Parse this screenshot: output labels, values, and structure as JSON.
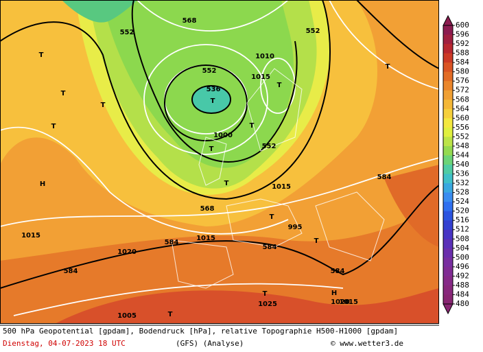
{
  "colorbar": {
    "ticks": [
      600,
      596,
      592,
      588,
      584,
      580,
      576,
      572,
      568,
      564,
      560,
      556,
      552,
      548,
      544,
      540,
      536,
      532,
      528,
      524,
      520,
      516,
      512,
      508,
      504,
      500,
      496,
      492,
      488,
      484,
      480
    ],
    "colors": [
      "#8c1c50",
      "#a02040",
      "#b82830",
      "#cc3a26",
      "#da5424",
      "#e26c26",
      "#ea862c",
      "#f0a034",
      "#f4b838",
      "#f6d03c",
      "#f4e840",
      "#e0f040",
      "#bce448",
      "#94da50",
      "#6cd478",
      "#50cca4",
      "#40c0c8",
      "#3aa8e0",
      "#3a8cf0",
      "#3070f0",
      "#2c54e0",
      "#3440d0",
      "#4834c4",
      "#5a30b8",
      "#6a2eac",
      "#782ea0",
      "#802c94",
      "#862a88",
      "#88287c",
      "#882672"
    ]
  },
  "map_labels": [
    "552",
    "552",
    "552",
    "552",
    "536",
    "568",
    "568",
    "584",
    "584",
    "584",
    "584",
    "584",
    "H",
    "H",
    "T",
    "T",
    "T",
    "T",
    "T",
    "T",
    "T",
    "T",
    "T",
    "T",
    "T",
    "T",
    "T",
    "T",
    "1015",
    "1020",
    "1025",
    "1015",
    "1010",
    "1015",
    "1000",
    "995",
    "1005",
    "1015",
    "1020",
    "1015"
  ],
  "footer": {
    "description": "500 hPa Geopotential [gpdam], Bodendruck [hPa], relative Topographie H500-H1000 [gpdam]",
    "date": "Dienstag, 04-07-2023  18 UTC",
    "model": "(GFS)  (Analyse)",
    "source": "© www.wetter3.de"
  }
}
